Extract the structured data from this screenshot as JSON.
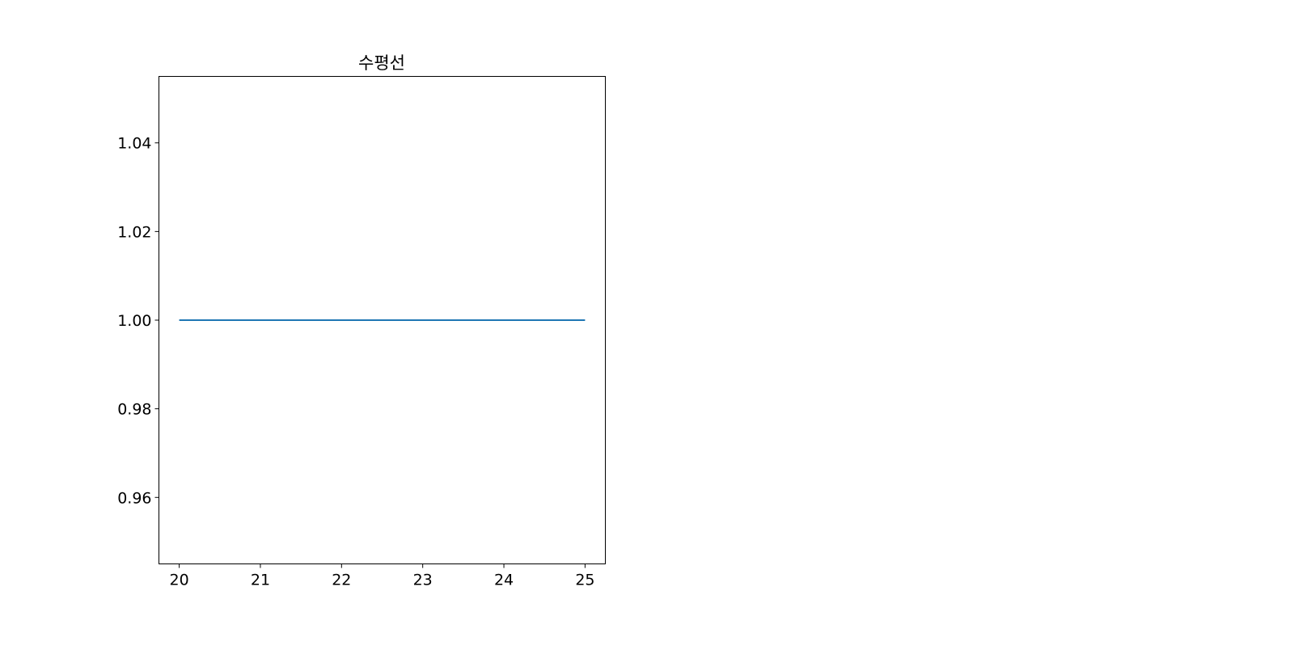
{
  "chart_data": {
    "type": "line",
    "title": "수평선",
    "xlabel": "",
    "ylabel": "",
    "x": [
      20,
      21,
      22,
      23,
      24,
      25
    ],
    "series": [
      {
        "values": [
          1,
          1,
          1,
          1,
          1,
          1
        ],
        "color": "#1f77b4"
      }
    ],
    "xlim": [
      19.75,
      25.25
    ],
    "ylim": [
      0.945,
      1.055
    ],
    "xticks": [
      20,
      21,
      22,
      23,
      24,
      25
    ],
    "xtick_labels": [
      "20",
      "21",
      "22",
      "23",
      "24",
      "25"
    ],
    "yticks": [
      0.96,
      0.98,
      1.0,
      1.02,
      1.04
    ],
    "ytick_labels": [
      "0.96",
      "0.98",
      "1.00",
      "1.02",
      "1.04"
    ],
    "grid": false,
    "legend": "none"
  }
}
